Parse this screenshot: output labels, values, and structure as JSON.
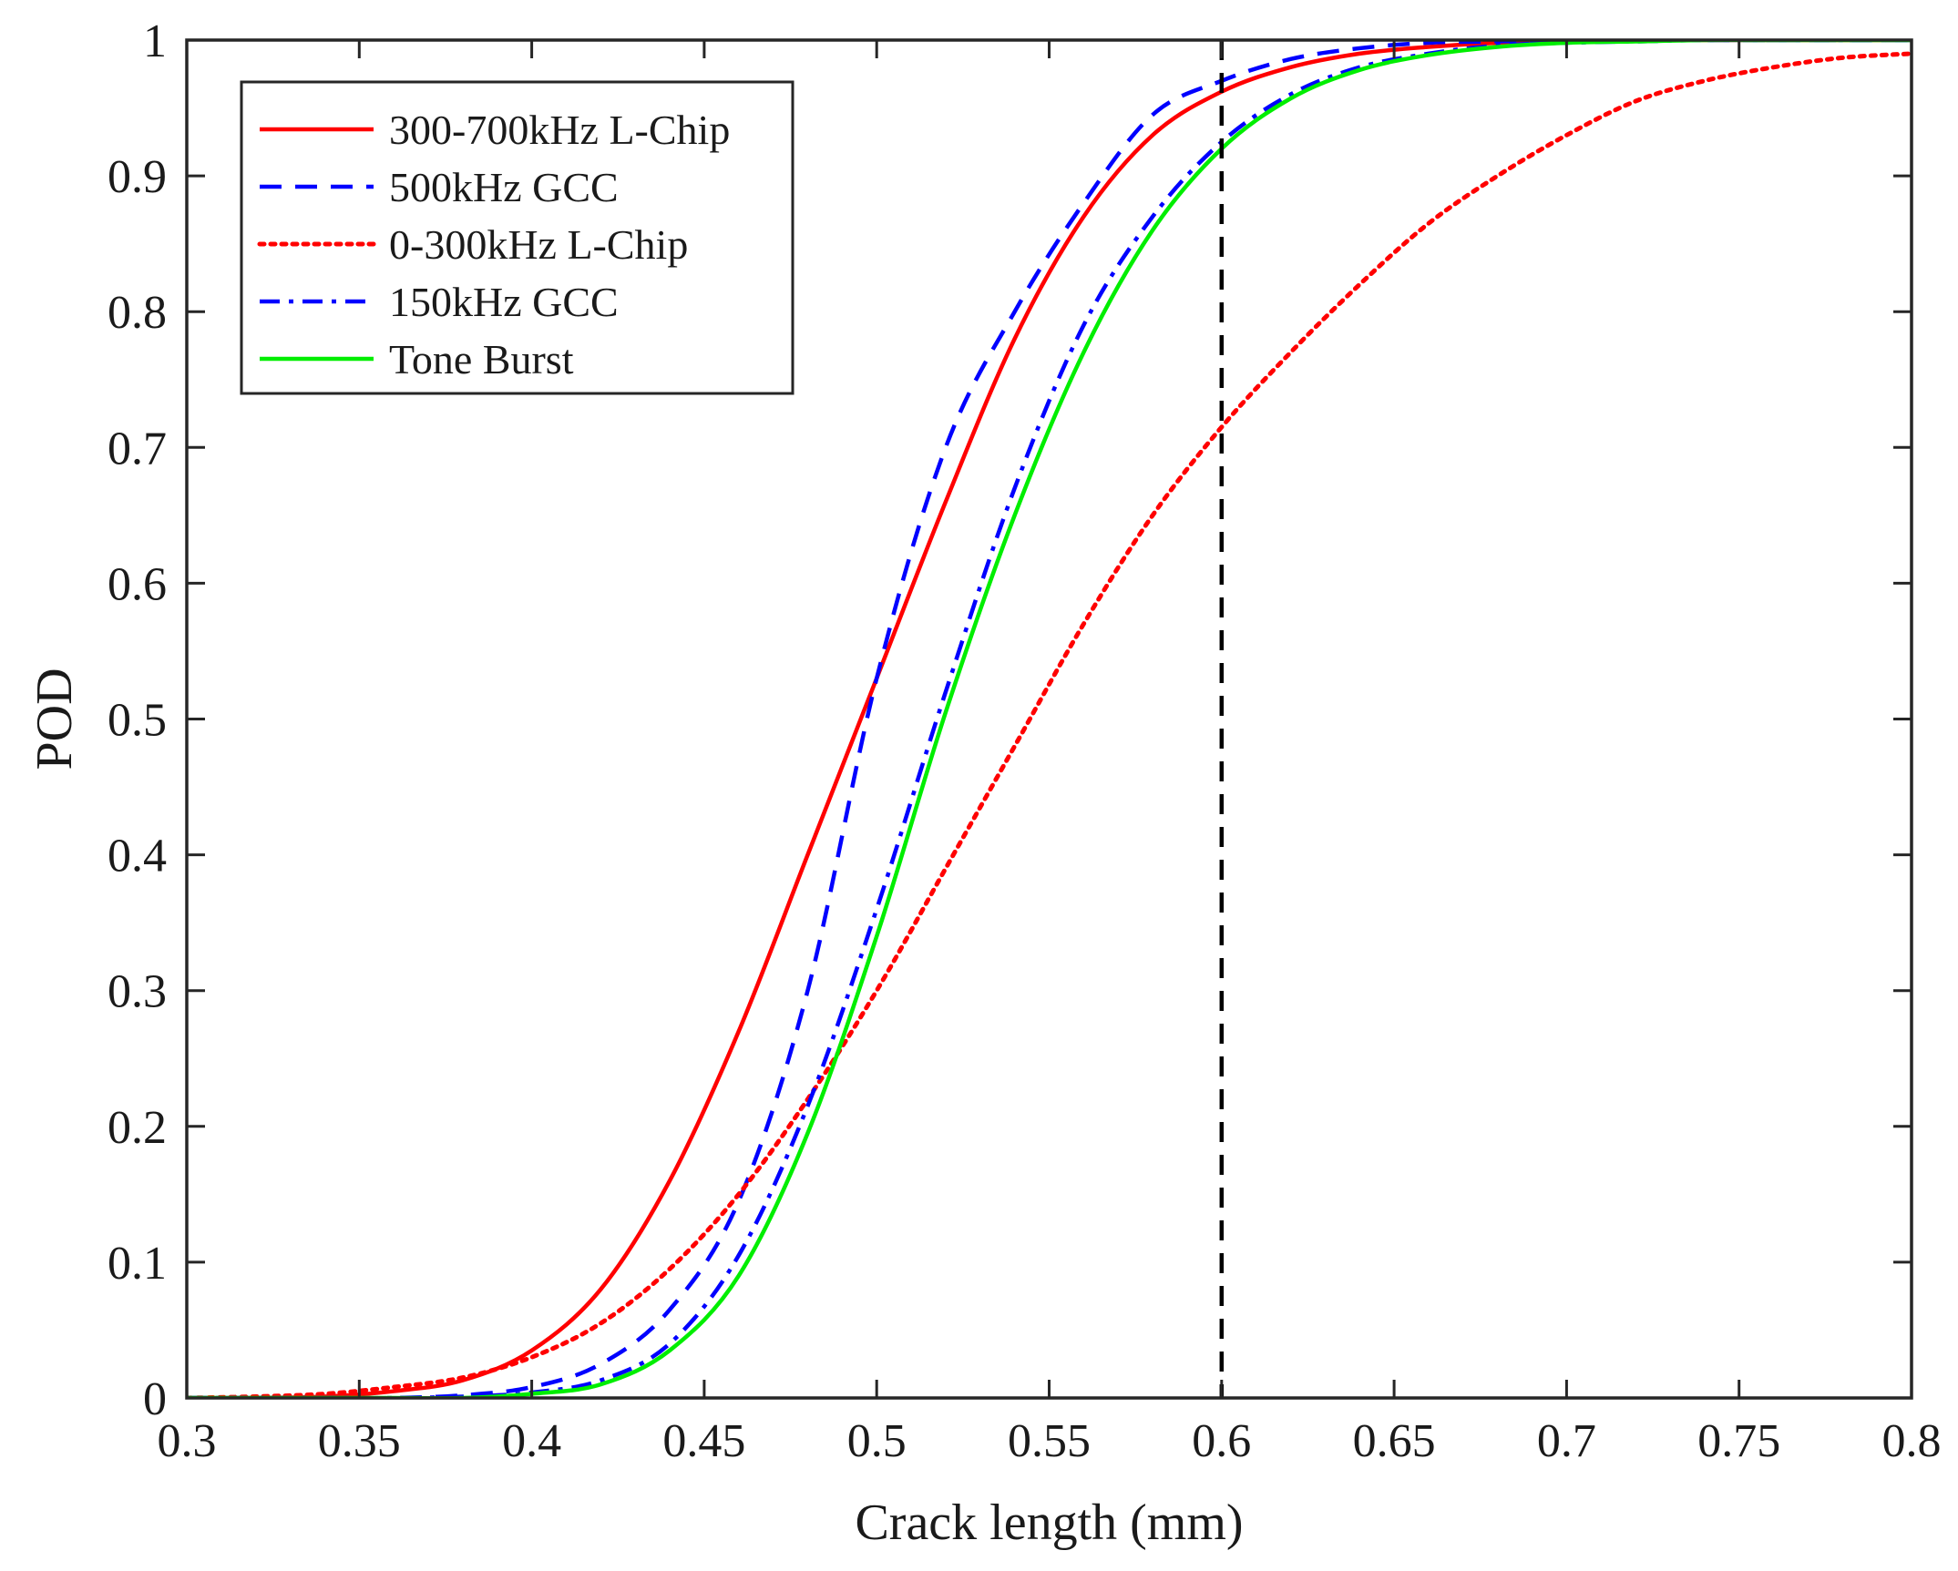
{
  "chart_data": {
    "type": "line",
    "title": "",
    "xlabel": "Crack length (mm)",
    "ylabel": "POD",
    "xlim": [
      0.3,
      0.8
    ],
    "ylim": [
      0,
      1
    ],
    "xticks": [
      0.3,
      0.35,
      0.4,
      0.45,
      0.5,
      0.55,
      0.6,
      0.65,
      0.7,
      0.75,
      0.8
    ],
    "xtick_labels": [
      "0.3",
      "0.35",
      "0.4",
      "0.45",
      "0.5",
      "0.55",
      "0.6",
      "0.65",
      "0.7",
      "0.75",
      "0.8"
    ],
    "yticks": [
      0,
      0.1,
      0.2,
      0.3,
      0.4,
      0.5,
      0.6,
      0.7,
      0.8,
      0.9,
      1
    ],
    "ytick_labels": [
      "0",
      "0.1",
      "0.2",
      "0.3",
      "0.4",
      "0.5",
      "0.6",
      "0.7",
      "0.8",
      "0.9",
      "1"
    ],
    "grid": false,
    "legend_position": "top-left",
    "x": [
      0.3,
      0.32,
      0.34,
      0.36,
      0.38,
      0.4,
      0.42,
      0.44,
      0.46,
      0.48,
      0.5,
      0.52,
      0.54,
      0.56,
      0.58,
      0.6,
      0.62,
      0.64,
      0.66,
      0.68,
      0.7,
      0.72,
      0.74,
      0.76,
      0.78,
      0.8
    ],
    "series": [
      {
        "name": "300-700kHz L-Chip",
        "color": "#ff0000",
        "style": "solid",
        "values": [
          0.0,
          0.0,
          0.001,
          0.005,
          0.013,
          0.035,
          0.08,
          0.16,
          0.27,
          0.4,
          0.53,
          0.66,
          0.78,
          0.87,
          0.93,
          0.962,
          0.98,
          0.99,
          0.995,
          0.998,
          0.999,
          1.0,
          1.0,
          1.0,
          1.0,
          1.0
        ]
      },
      {
        "name": "500kHz GCC",
        "color": "#0000ff",
        "style": "dashed",
        "values": [
          0.0,
          0.0,
          0.0,
          0.0,
          0.002,
          0.008,
          0.025,
          0.065,
          0.145,
          0.3,
          0.53,
          0.7,
          0.8,
          0.88,
          0.945,
          0.97,
          0.986,
          0.994,
          0.998,
          0.999,
          1.0,
          1.0,
          1.0,
          1.0,
          1.0,
          1.0
        ]
      },
      {
        "name": "0-300kHz L-Chip",
        "color": "#ff0000",
        "style": "dotted",
        "values": [
          0.0,
          0.001,
          0.003,
          0.008,
          0.015,
          0.03,
          0.055,
          0.095,
          0.15,
          0.22,
          0.3,
          0.39,
          0.48,
          0.57,
          0.65,
          0.715,
          0.77,
          0.82,
          0.865,
          0.9,
          0.93,
          0.955,
          0.97,
          0.98,
          0.987,
          0.99
        ]
      },
      {
        "name": "150kHz GCC",
        "color": "#0000ff",
        "style": "dashdot",
        "values": [
          0.0,
          0.0,
          0.0,
          0.0,
          0.001,
          0.004,
          0.013,
          0.04,
          0.105,
          0.215,
          0.36,
          0.52,
          0.67,
          0.79,
          0.87,
          0.925,
          0.96,
          0.98,
          0.99,
          0.996,
          0.998,
          0.999,
          1.0,
          1.0,
          1.0,
          1.0
        ]
      },
      {
        "name": "Tone Burst",
        "color": "#00ee00",
        "style": "solid",
        "values": [
          0.0,
          0.0,
          0.0,
          0.0,
          0.0,
          0.003,
          0.01,
          0.035,
          0.09,
          0.195,
          0.34,
          0.505,
          0.65,
          0.77,
          0.86,
          0.92,
          0.957,
          0.978,
          0.989,
          0.995,
          0.998,
          0.999,
          1.0,
          1.0,
          1.0,
          1.0
        ]
      }
    ],
    "reference_line": {
      "x": 0.6,
      "color": "#000000",
      "style": "dashed"
    }
  }
}
